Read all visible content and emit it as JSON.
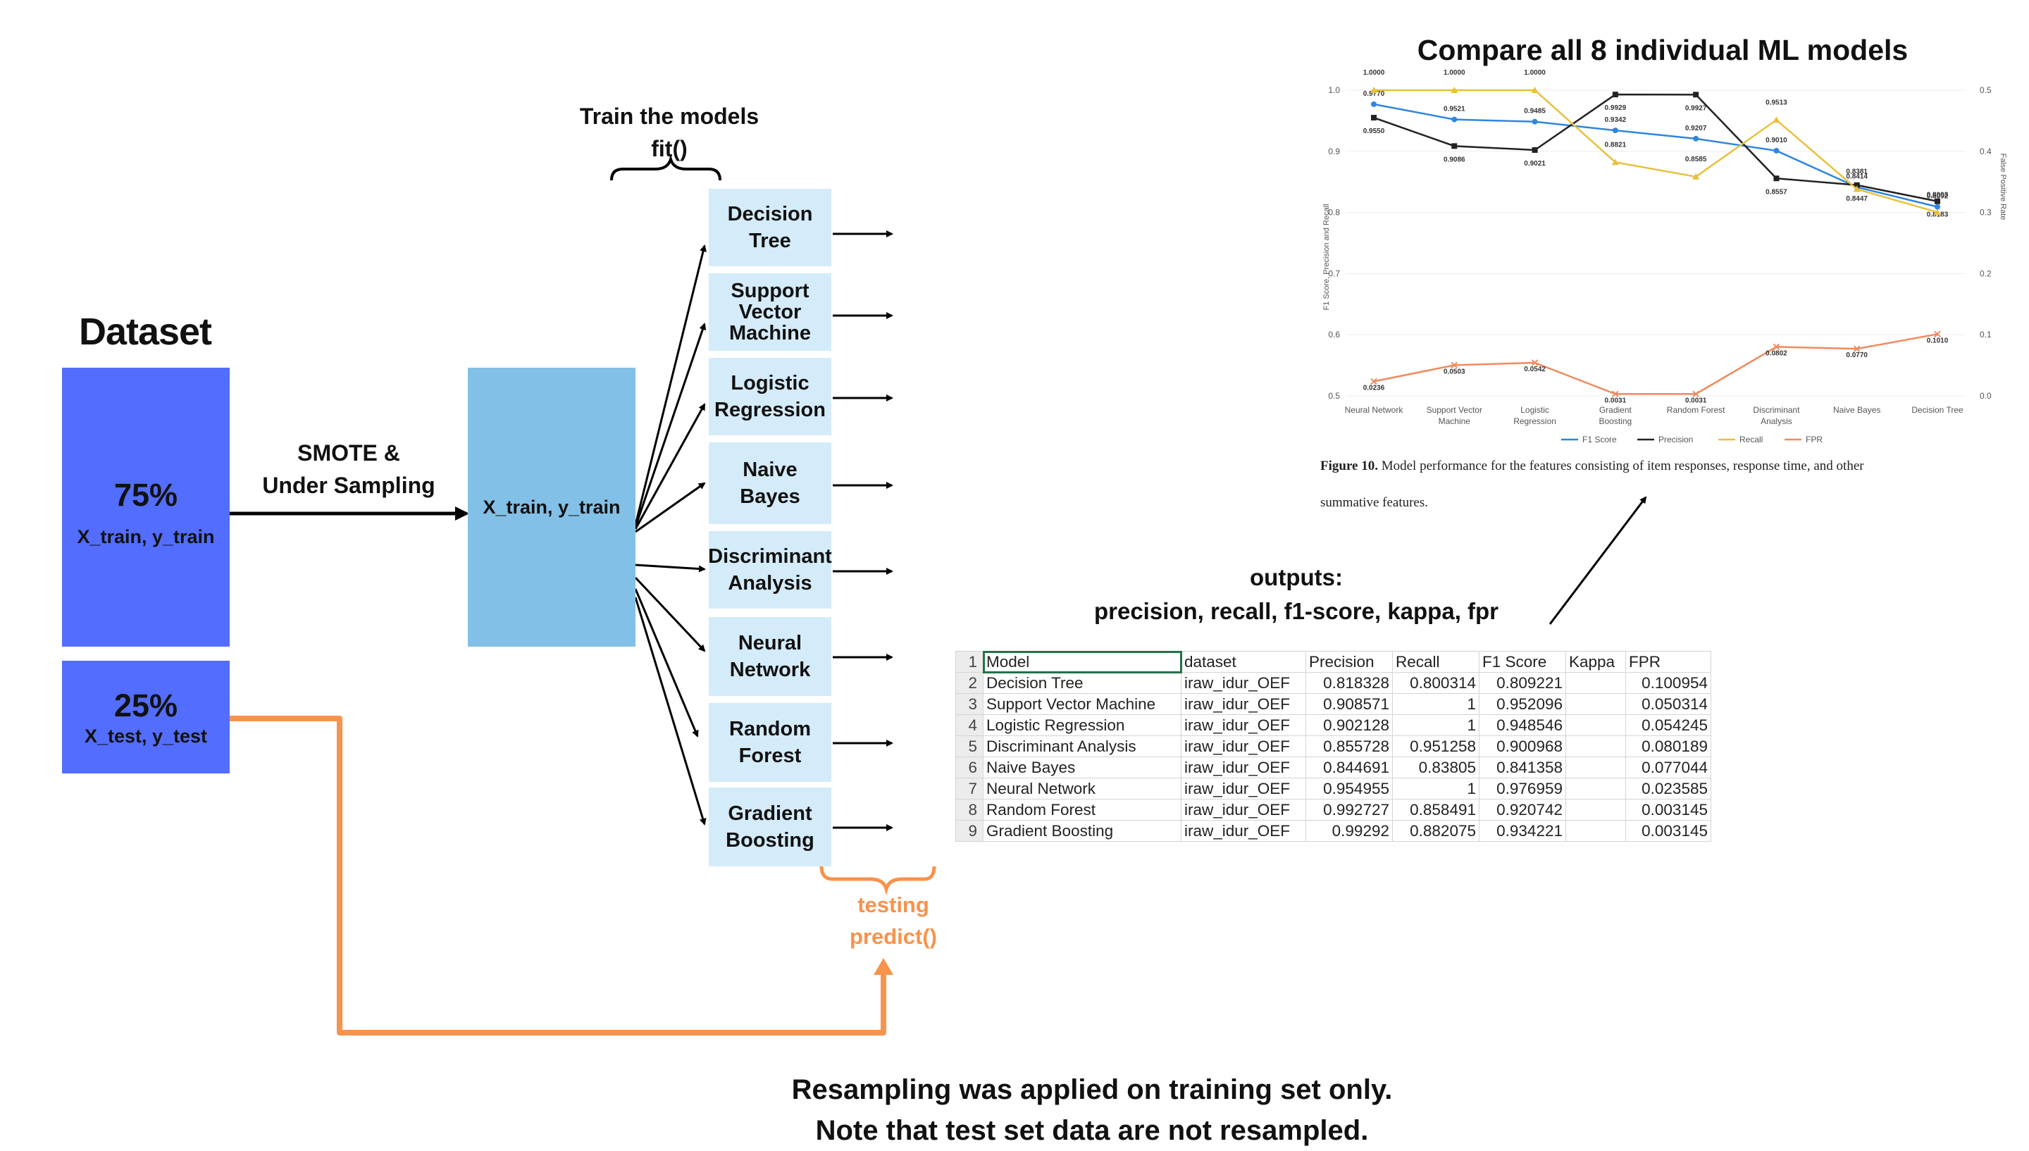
{
  "dataset": {
    "title": "Dataset",
    "train_pct": "75%",
    "train_label": "X_train, y_train",
    "test_pct": "25%",
    "test_label": "X_test, y_test"
  },
  "resampling": {
    "line1": "SMOTE &",
    "line2": "Under Sampling",
    "resampled_label": "X_train, y_train"
  },
  "training": {
    "line1": "Train the models",
    "line2": "fit()"
  },
  "models": [
    {
      "l1": "Decision",
      "l2": "Tree",
      "l3": ""
    },
    {
      "l1": "Support",
      "l2": "Vector",
      "l3": "Machine"
    },
    {
      "l1": "Logistic",
      "l2": "Regression",
      "l3": ""
    },
    {
      "l1": "Naive",
      "l2": "Bayes",
      "l3": ""
    },
    {
      "l1": "Discriminant",
      "l2": "Analysis",
      "l3": ""
    },
    {
      "l1": "Neural",
      "l2": "Network",
      "l3": ""
    },
    {
      "l1": "Random",
      "l2": "Forest",
      "l3": ""
    },
    {
      "l1": "Gradient",
      "l2": "Boosting",
      "l3": ""
    }
  ],
  "testing": {
    "line1": "testing",
    "line2": "predict()"
  },
  "outputs": {
    "line1": "outputs:",
    "line2": "precision, recall, f1-score, kappa, fpr"
  },
  "compare_title": "Compare all 8 individual ML models",
  "note": {
    "line1": "Resampling was applied on training set only.",
    "line2": "Note that test set data are not resampled."
  },
  "table": {
    "header": [
      "Model",
      "dataset",
      "Precision",
      "Recall",
      "F1 Score",
      "Kappa",
      "FPR"
    ],
    "rows": [
      [
        "Decision Tree",
        "iraw_idur_OEF",
        "0.818328",
        "0.800314",
        "0.809221",
        "",
        "0.100954"
      ],
      [
        "Support Vector Machine",
        "iraw_idur_OEF",
        "0.908571",
        "1",
        "0.952096",
        "",
        "0.050314"
      ],
      [
        "Logistic Regression",
        "iraw_idur_OEF",
        "0.902128",
        "1",
        "0.948546",
        "",
        "0.054245"
      ],
      [
        "Discriminant Analysis",
        "iraw_idur_OEF",
        "0.855728",
        "0.951258",
        "0.900968",
        "",
        "0.080189"
      ],
      [
        "Naive Bayes",
        "iraw_idur_OEF",
        "0.844691",
        "0.83805",
        "0.841358",
        "",
        "0.077044"
      ],
      [
        "Neural Network",
        "iraw_idur_OEF",
        "0.954955",
        "1",
        "0.976959",
        "",
        "0.023585"
      ],
      [
        "Random Forest",
        "iraw_idur_OEF",
        "0.992727",
        "0.858491",
        "0.920742",
        "",
        "0.003145"
      ],
      [
        "Gradient Boosting",
        "iraw_idur_OEF",
        "0.99292",
        "0.882075",
        "0.934221",
        "",
        "0.003145"
      ]
    ]
  },
  "chart_data": {
    "type": "line",
    "categories": [
      "Neural Network",
      "Support Vector Machine",
      "Logistic Regression",
      "Gradient Boosting",
      "Random Forest",
      "Discriminant Analysis",
      "Naive Bayes",
      "Decision Tree"
    ],
    "ylabel": "F1 Score, Precision and Recall",
    "y2label": "False Positive Rate",
    "ylim": [
      0.5,
      1.0
    ],
    "y2lim": [
      0.0,
      0.5
    ],
    "yticks": [
      "0.5",
      "0.6",
      "0.7",
      "0.8",
      "0.9",
      "1.0"
    ],
    "y2ticks": [
      "0.0",
      "0.1",
      "0.2",
      "0.3",
      "0.4",
      "0.5"
    ],
    "series": [
      {
        "name": "F1 Score",
        "color": "#2e86de",
        "axis": "left",
        "values": [
          0.977,
          0.9521,
          0.9485,
          0.9342,
          0.9207,
          0.901,
          0.8414,
          0.8092
        ],
        "labels": [
          "0.9770",
          "0.9521",
          "0.9485",
          "0.9342",
          "0.9207",
          "0.9010",
          "0.8414",
          "0.8092"
        ]
      },
      {
        "name": "Precision",
        "color": "#222222",
        "axis": "left",
        "values": [
          0.955,
          0.9086,
          0.9021,
          0.9929,
          0.9927,
          0.8557,
          0.8447,
          0.8183
        ],
        "labels": [
          "0.9550",
          "0.9086",
          "0.9021",
          "0.9929",
          "0.9927",
          "0.8557",
          "0.8447",
          "0.8183"
        ]
      },
      {
        "name": "Recall",
        "color": "#e8c13a",
        "axis": "left",
        "values": [
          1.0,
          1.0,
          1.0,
          0.8821,
          0.8585,
          0.9513,
          0.8381,
          0.8003
        ],
        "labels": [
          "1.0000",
          "1.0000",
          "1.0000",
          "0.8821",
          "0.8585",
          "0.9513",
          "0.8381",
          "0.8003"
        ]
      },
      {
        "name": "FPR",
        "color": "#f08a5d",
        "axis": "right",
        "values": [
          0.0236,
          0.0503,
          0.0542,
          0.0031,
          0.0031,
          0.0802,
          0.077,
          0.101
        ],
        "labels": [
          "0.0236",
          "0.0503",
          "0.0542",
          "0.0031",
          "0.0031",
          "0.0802",
          "0.0770",
          "0.1010"
        ]
      }
    ],
    "legend_position": "bottom",
    "caption_label": "Figure 10.",
    "caption_text": "Model performance for the features consisting of item responses, response time, and other",
    "caption_text2": "summative features."
  },
  "colors": {
    "dataset_blue": "#536dfe",
    "resampled_blue": "#82c0e7",
    "model_box": "#d4ebf9",
    "orange": "#f7934c"
  }
}
